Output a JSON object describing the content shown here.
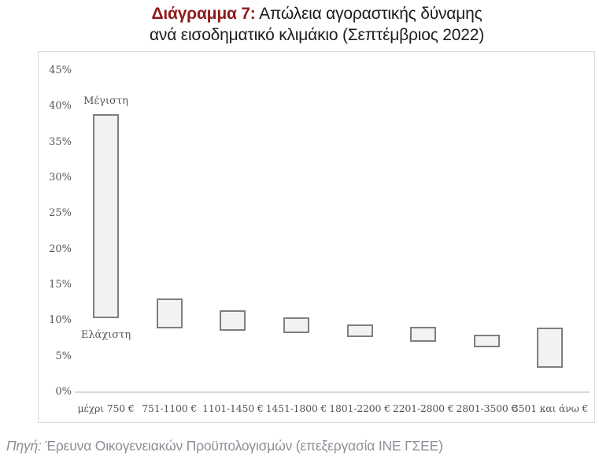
{
  "title": {
    "prefix": "Διάγραμμα 7:",
    "line1_rest": " Απώλεια αγοραστικής δύναμης",
    "line2": "ανά εισοδηματικό κλιμάκιο (Σεπτέμβριος 2022)"
  },
  "source_note": {
    "prefix": "Πηγή:",
    "text": " Έρευνα Οικογενειακών Προϋπολογισμών (επεξεργασία ΙΝΕ ΓΣΕΕ)"
  },
  "colors": {
    "title_accent": "#8e1b1b",
    "text_dark": "#1c1c1c",
    "axis_text": "#555555",
    "panel_border": "#d9d9d9",
    "axis_line": "#d9d9d9",
    "bar_fill": "#f2f2f2",
    "bar_border": "#7f7f7f",
    "footer_text": "#8b8f96"
  },
  "chart_data": {
    "type": "bar",
    "subtype": "floating-range-bars",
    "title": "Διάγραμμα 7: Απώλεια αγοραστικής δύναμης ανά εισοδηματικό κλιμάκιο (Σεπτέμβριος 2022)",
    "categories": [
      "μέχρι 750 €",
      "751-1100 €",
      "1101-1450 €",
      "1451-1800 €",
      "1801-2200 €",
      "2201-2800 €",
      "2801-3500 €",
      "3501 και άνω €"
    ],
    "series": [
      {
        "name": "Ελάχιστη",
        "values": [
          10.4,
          8.9,
          8.6,
          8.3,
          7.7,
          7.1,
          6.3,
          3.4
        ]
      },
      {
        "name": "Μέγιστη",
        "values": [
          38.9,
          13.1,
          11.5,
          10.5,
          9.5,
          9.2,
          8.1,
          9.0
        ]
      }
    ],
    "annotations": [
      {
        "text": "Μέγιστη",
        "category_index": 0,
        "position": "above-max"
      },
      {
        "text": "Ελάχιστη",
        "category_index": 0,
        "position": "below-min"
      }
    ],
    "xlabel": "",
    "ylabel": "",
    "ylim": [
      0,
      45
    ],
    "ytick_step": 5,
    "ytick_labels": [
      "0%",
      "5%",
      "10%",
      "15%",
      "20%",
      "25%",
      "30%",
      "35%",
      "40%",
      "45%"
    ],
    "grid": false,
    "legend": "none"
  }
}
